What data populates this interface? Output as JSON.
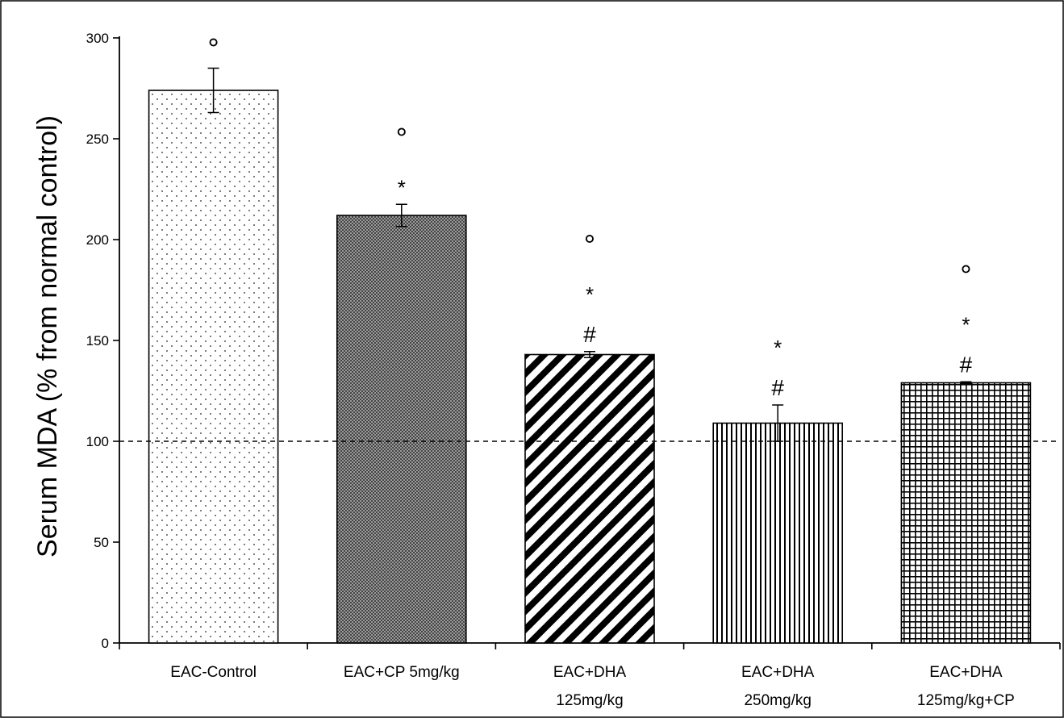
{
  "chart_data": {
    "type": "bar",
    "title": "",
    "xlabel": "",
    "ylabel": "Serum MDA (% from normal control)",
    "ylim": [
      0,
      300
    ],
    "yticks": [
      0,
      50,
      100,
      150,
      200,
      250,
      300
    ],
    "grid": false,
    "reference_line": {
      "value": 100,
      "style": "dashed"
    },
    "categories": [
      [
        "EAC-Control"
      ],
      [
        "EAC+CP 5mg/kg"
      ],
      [
        "EAC+DHA",
        "125mg/kg"
      ],
      [
        "EAC+DHA",
        "250mg/kg"
      ],
      [
        "EAC+DHA",
        "125mg/kg+CP"
      ]
    ],
    "values": [
      274,
      212,
      143,
      109,
      129
    ],
    "errors": [
      11,
      5.5,
      1.5,
      9,
      0.5
    ],
    "patterns": [
      "dots",
      "dense-checker",
      "diagonal-stripes",
      "vertical-stripes",
      "grid"
    ],
    "annotations": [
      [
        "°"
      ],
      [
        "°",
        "*"
      ],
      [
        "°",
        "*",
        "#"
      ],
      [
        "*",
        "#"
      ],
      [
        "°",
        "*",
        "#"
      ]
    ]
  }
}
